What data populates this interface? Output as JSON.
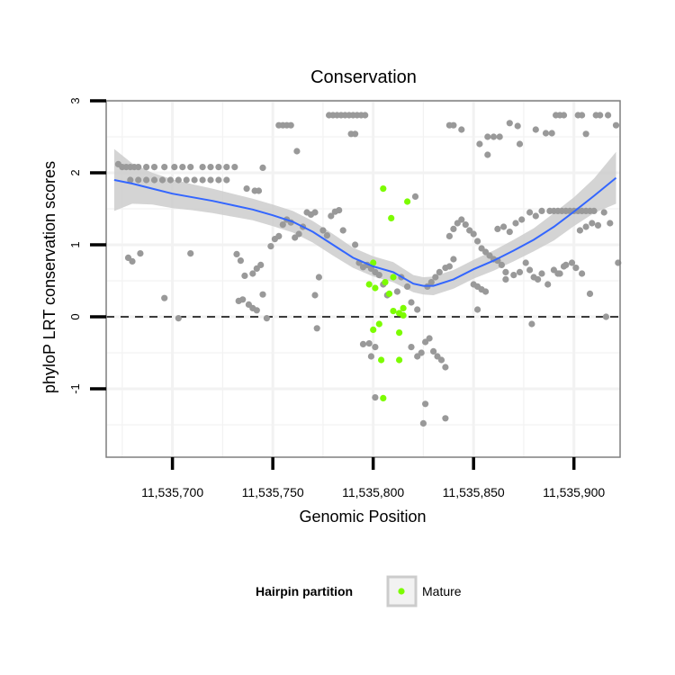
{
  "colors": {
    "background_point": "#999999",
    "mature_point": "#7cfc00",
    "smooth_line": "#3366ff",
    "ribbon": "#cccccc",
    "zero_line": "#000000",
    "grid": "#f2f2f2"
  },
  "chart_data": {
    "type": "scatter",
    "title": "Conservation",
    "xlabel": "Genomic Position",
    "ylabel": "phyloP LRT conservation scores",
    "xlim": [
      11535667,
      11535923
    ],
    "ylim": [
      -1.95,
      3.0
    ],
    "x_ticks": [
      11535700,
      11535750,
      11535800,
      11535850,
      11535900
    ],
    "x_tick_labels": [
      "11,535,700",
      "11,535,750",
      "11,535,800",
      "11,535,850",
      "11,535,900"
    ],
    "y_ticks": [
      -1,
      0,
      1,
      2,
      3
    ],
    "y_tick_labels": [
      "-1",
      "0",
      "1",
      "2",
      "3"
    ],
    "hline": 0,
    "grid": true,
    "legend": {
      "title": "Hairpin partition",
      "position": "bottom",
      "entries": [
        {
          "label": "Mature",
          "color": "#7cfc00"
        }
      ]
    },
    "series": [
      {
        "name": "",
        "color": "#999999",
        "points": [
          [
            11535673,
            2.12
          ],
          [
            11535675,
            2.08
          ],
          [
            11535677,
            2.08
          ],
          [
            11535679,
            2.08
          ],
          [
            11535681,
            2.08
          ],
          [
            11535683,
            2.08
          ],
          [
            11535679,
            1.9
          ],
          [
            11535683,
            1.9
          ],
          [
            11535687,
            1.9
          ],
          [
            11535691,
            1.9
          ],
          [
            11535695,
            1.9
          ],
          [
            11535699,
            1.9
          ],
          [
            11535703,
            1.9
          ],
          [
            11535707,
            1.9
          ],
          [
            11535711,
            1.9
          ],
          [
            11535715,
            1.9
          ],
          [
            11535719,
            1.9
          ],
          [
            11535723,
            1.9
          ],
          [
            11535727,
            1.9
          ],
          [
            11535687,
            2.08
          ],
          [
            11535691,
            2.08
          ],
          [
            11535696,
            2.08
          ],
          [
            11535701,
            2.08
          ],
          [
            11535705,
            2.08
          ],
          [
            11535709,
            2.08
          ],
          [
            11535715,
            2.08
          ],
          [
            11535719,
            2.08
          ],
          [
            11535723,
            2.08
          ],
          [
            11535727,
            2.08
          ],
          [
            11535731,
            2.08
          ],
          [
            11535678,
            0.82
          ],
          [
            11535680,
            0.77
          ],
          [
            11535684,
            0.88
          ],
          [
            11535696,
            0.26
          ],
          [
            11535703,
            -0.02
          ],
          [
            11535709,
            0.88
          ],
          [
            11535732,
            0.87
          ],
          [
            11535734,
            0.78
          ],
          [
            11535736,
            0.57
          ],
          [
            11535740,
            0.6
          ],
          [
            11535742,
            0.67
          ],
          [
            11535744,
            0.72
          ],
          [
            11535733,
            0.22
          ],
          [
            11535735,
            0.24
          ],
          [
            11535738,
            0.17
          ],
          [
            11535740,
            0.12
          ],
          [
            11535742,
            0.09
          ],
          [
            11535737,
            1.78
          ],
          [
            11535741,
            1.75
          ],
          [
            11535743,
            1.75
          ],
          [
            11535745,
            2.07
          ],
          [
            11535745,
            0.31
          ],
          [
            11535747,
            -0.02
          ],
          [
            11535749,
            0.98
          ],
          [
            11535751,
            1.08
          ],
          [
            11535753,
            1.12
          ],
          [
            11535755,
            1.28
          ],
          [
            11535757,
            1.35
          ],
          [
            11535759,
            1.31
          ],
          [
            11535761,
            1.1
          ],
          [
            11535763,
            1.15
          ],
          [
            11535765,
            1.25
          ],
          [
            11535767,
            1.45
          ],
          [
            11535769,
            1.42
          ],
          [
            11535771,
            1.45
          ],
          [
            11535753,
            2.66
          ],
          [
            11535755,
            2.66
          ],
          [
            11535757,
            2.66
          ],
          [
            11535759,
            2.66
          ],
          [
            11535762,
            2.3
          ],
          [
            11535771,
            0.3
          ],
          [
            11535772,
            -0.16
          ],
          [
            11535773,
            0.55
          ],
          [
            11535775,
            1.2
          ],
          [
            11535777,
            1.13
          ],
          [
            11535779,
            1.4
          ],
          [
            11535781,
            1.46
          ],
          [
            11535783,
            1.48
          ],
          [
            11535785,
            1.2
          ],
          [
            11535778,
            2.8
          ],
          [
            11535780,
            2.8
          ],
          [
            11535782,
            2.8
          ],
          [
            11535784,
            2.8
          ],
          [
            11535786,
            2.8
          ],
          [
            11535788,
            2.8
          ],
          [
            11535790,
            2.8
          ],
          [
            11535792,
            2.8
          ],
          [
            11535794,
            2.8
          ],
          [
            11535796,
            2.8
          ],
          [
            11535789,
            2.54
          ],
          [
            11535791,
            2.54
          ],
          [
            11535793,
            0.75
          ],
          [
            11535795,
            0.69
          ],
          [
            11535797,
            0.72
          ],
          [
            11535799,
            0.67
          ],
          [
            11535801,
            0.62
          ],
          [
            11535803,
            0.58
          ],
          [
            11535805,
            0.45
          ],
          [
            11535807,
            0.3
          ],
          [
            11535791,
            1.0
          ],
          [
            11535795,
            -0.38
          ],
          [
            11535798,
            -0.37
          ],
          [
            11535799,
            -0.55
          ],
          [
            11535801,
            -0.42
          ],
          [
            11535801,
            -1.12
          ],
          [
            11535812,
            0.35
          ],
          [
            11535814,
            0.55
          ],
          [
            11535817,
            0.42
          ],
          [
            11535819,
            0.2
          ],
          [
            11535821,
            1.67
          ],
          [
            11535822,
            0.1
          ],
          [
            11535819,
            -0.42
          ],
          [
            11535822,
            -0.55
          ],
          [
            11535824,
            -0.5
          ],
          [
            11535826,
            -0.35
          ],
          [
            11535828,
            -0.3
          ],
          [
            11535830,
            -0.48
          ],
          [
            11535832,
            -0.55
          ],
          [
            11535834,
            -0.6
          ],
          [
            11535836,
            -0.7
          ],
          [
            11535826,
            -1.21
          ],
          [
            11535825,
            -1.48
          ],
          [
            11535836,
            -1.41
          ],
          [
            11535827,
            0.42
          ],
          [
            11535829,
            0.48
          ],
          [
            11535831,
            0.55
          ],
          [
            11535833,
            0.62
          ],
          [
            11535836,
            0.68
          ],
          [
            11535838,
            0.7
          ],
          [
            11535840,
            0.8
          ],
          [
            11535838,
            1.12
          ],
          [
            11535840,
            1.22
          ],
          [
            11535842,
            1.3
          ],
          [
            11535844,
            1.35
          ],
          [
            11535846,
            1.28
          ],
          [
            11535848,
            1.2
          ],
          [
            11535850,
            1.15
          ],
          [
            11535852,
            1.05
          ],
          [
            11535854,
            0.95
          ],
          [
            11535856,
            0.9
          ],
          [
            11535858,
            0.85
          ],
          [
            11535860,
            0.8
          ],
          [
            11535862,
            0.78
          ],
          [
            11535864,
            0.72
          ],
          [
            11535866,
            0.62
          ],
          [
            11535850,
            0.45
          ],
          [
            11535852,
            0.42
          ],
          [
            11535854,
            0.38
          ],
          [
            11535856,
            0.35
          ],
          [
            11535852,
            0.1
          ],
          [
            11535838,
            2.66
          ],
          [
            11535840,
            2.66
          ],
          [
            11535844,
            2.6
          ],
          [
            11535853,
            2.4
          ],
          [
            11535857,
            2.5
          ],
          [
            11535860,
            2.5
          ],
          [
            11535863,
            2.5
          ],
          [
            11535857,
            2.25
          ],
          [
            11535868,
            2.69
          ],
          [
            11535872,
            2.65
          ],
          [
            11535873,
            2.4
          ],
          [
            11535881,
            2.6
          ],
          [
            11535886,
            2.55
          ],
          [
            11535889,
            2.55
          ],
          [
            11535891,
            2.8
          ],
          [
            11535893,
            2.8
          ],
          [
            11535895,
            2.8
          ],
          [
            11535902,
            2.8
          ],
          [
            11535904,
            2.8
          ],
          [
            11535906,
            2.54
          ],
          [
            11535911,
            2.8
          ],
          [
            11535913,
            2.8
          ],
          [
            11535917,
            2.8
          ],
          [
            11535921,
            2.66
          ],
          [
            11535862,
            1.22
          ],
          [
            11535865,
            1.25
          ],
          [
            11535868,
            1.18
          ],
          [
            11535871,
            1.3
          ],
          [
            11535874,
            1.35
          ],
          [
            11535878,
            1.45
          ],
          [
            11535881,
            1.4
          ],
          [
            11535884,
            1.47
          ],
          [
            11535888,
            1.47
          ],
          [
            11535890,
            1.47
          ],
          [
            11535892,
            1.47
          ],
          [
            11535894,
            1.47
          ],
          [
            11535896,
            1.47
          ],
          [
            11535898,
            1.47
          ],
          [
            11535900,
            1.47
          ],
          [
            11535902,
            1.47
          ],
          [
            11535904,
            1.47
          ],
          [
            11535906,
            1.47
          ],
          [
            11535908,
            1.47
          ],
          [
            11535910,
            1.47
          ],
          [
            11535903,
            1.2
          ],
          [
            11535906,
            1.25
          ],
          [
            11535909,
            1.3
          ],
          [
            11535912,
            1.27
          ],
          [
            11535915,
            1.45
          ],
          [
            11535918,
            1.3
          ],
          [
            11535866,
            0.52
          ],
          [
            11535870,
            0.58
          ],
          [
            11535873,
            0.62
          ],
          [
            11535876,
            0.75
          ],
          [
            11535878,
            0.65
          ],
          [
            11535880,
            0.55
          ],
          [
            11535882,
            0.52
          ],
          [
            11535884,
            0.6
          ],
          [
            11535887,
            0.45
          ],
          [
            11535890,
            0.65
          ],
          [
            11535893,
            0.6
          ],
          [
            11535896,
            0.72
          ],
          [
            11535899,
            0.75
          ],
          [
            11535901,
            0.68
          ],
          [
            11535904,
            0.6
          ],
          [
            11535892,
            0.6
          ],
          [
            11535895,
            0.7
          ],
          [
            11535879,
            -0.1
          ],
          [
            11535908,
            0.32
          ],
          [
            11535916,
            0.0
          ],
          [
            11535922,
            0.75
          ]
        ]
      },
      {
        "name": "Mature",
        "color": "#7cfc00",
        "points": [
          [
            11535805,
            1.78
          ],
          [
            11535809,
            1.37
          ],
          [
            11535817,
            1.6
          ],
          [
            11535798,
            0.45
          ],
          [
            11535801,
            0.4
          ],
          [
            11535806,
            0.48
          ],
          [
            11535808,
            0.32
          ],
          [
            11535810,
            0.55
          ],
          [
            11535800,
            0.75
          ],
          [
            11535810,
            0.08
          ],
          [
            11535813,
            0.05
          ],
          [
            11535815,
            0.12
          ],
          [
            11535815,
            0.02
          ],
          [
            11535803,
            -0.1
          ],
          [
            11535800,
            -0.18
          ],
          [
            11535813,
            -0.22
          ],
          [
            11535804,
            -0.6
          ],
          [
            11535813,
            -0.6
          ],
          [
            11535805,
            -1.13
          ]
        ]
      }
    ],
    "smooth": {
      "x": [
        11535671,
        11535680,
        11535690,
        11535700,
        11535710,
        11535720,
        11535730,
        11535740,
        11535750,
        11535760,
        11535770,
        11535780,
        11535790,
        11535800,
        11535810,
        11535820,
        11535825,
        11535830,
        11535840,
        11535850,
        11535860,
        11535870,
        11535880,
        11535890,
        11535900,
        11535910,
        11535921
      ],
      "y": [
        1.9,
        1.85,
        1.78,
        1.71,
        1.66,
        1.61,
        1.55,
        1.49,
        1.41,
        1.32,
        1.18,
        1.0,
        0.82,
        0.7,
        0.62,
        0.46,
        0.43,
        0.43,
        0.52,
        0.66,
        0.78,
        0.92,
        1.07,
        1.25,
        1.46,
        1.68,
        1.93
      ],
      "ci_low": [
        1.47,
        1.57,
        1.56,
        1.51,
        1.48,
        1.44,
        1.39,
        1.34,
        1.26,
        1.17,
        1.03,
        0.85,
        0.68,
        0.56,
        0.48,
        0.34,
        0.31,
        0.3,
        0.39,
        0.53,
        0.64,
        0.77,
        0.91,
        1.06,
        1.26,
        1.44,
        1.57
      ],
      "ci_high": [
        2.33,
        2.13,
        2.0,
        1.91,
        1.84,
        1.78,
        1.71,
        1.64,
        1.56,
        1.47,
        1.33,
        1.15,
        0.96,
        0.84,
        0.76,
        0.58,
        0.55,
        0.56,
        0.65,
        0.79,
        0.92,
        1.07,
        1.23,
        1.44,
        1.66,
        1.92,
        2.29
      ]
    }
  }
}
